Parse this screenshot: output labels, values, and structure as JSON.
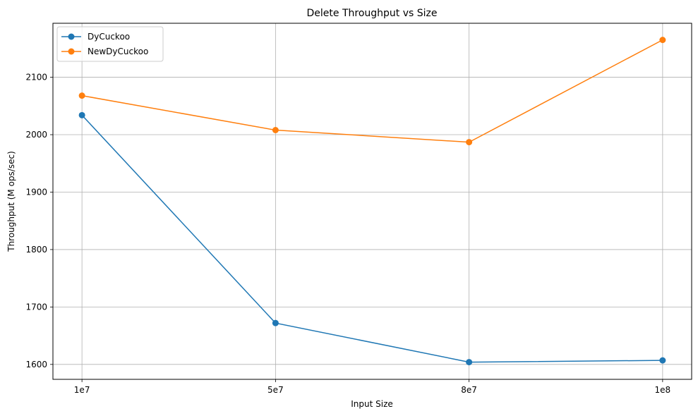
{
  "chart_data": {
    "type": "line",
    "title": "Delete Throughput vs Size",
    "xlabel": "Input Size",
    "ylabel": "Throughput (M ops/sec)",
    "categories": [
      "1e7",
      "5e7",
      "8e7",
      "1e8"
    ],
    "yticks": [
      1600,
      1700,
      1800,
      1900,
      2000,
      2100
    ],
    "ylim": [
      1574,
      2194
    ],
    "grid": true,
    "legend_position": "top-left",
    "series": [
      {
        "name": "DyCuckoo",
        "color": "#1f77b4",
        "values": [
          2034,
          1672,
          1604,
          1607
        ]
      },
      {
        "name": "NewDyCuckoo",
        "color": "#ff7f0e",
        "values": [
          2068,
          2008,
          1987,
          2165
        ]
      }
    ]
  }
}
